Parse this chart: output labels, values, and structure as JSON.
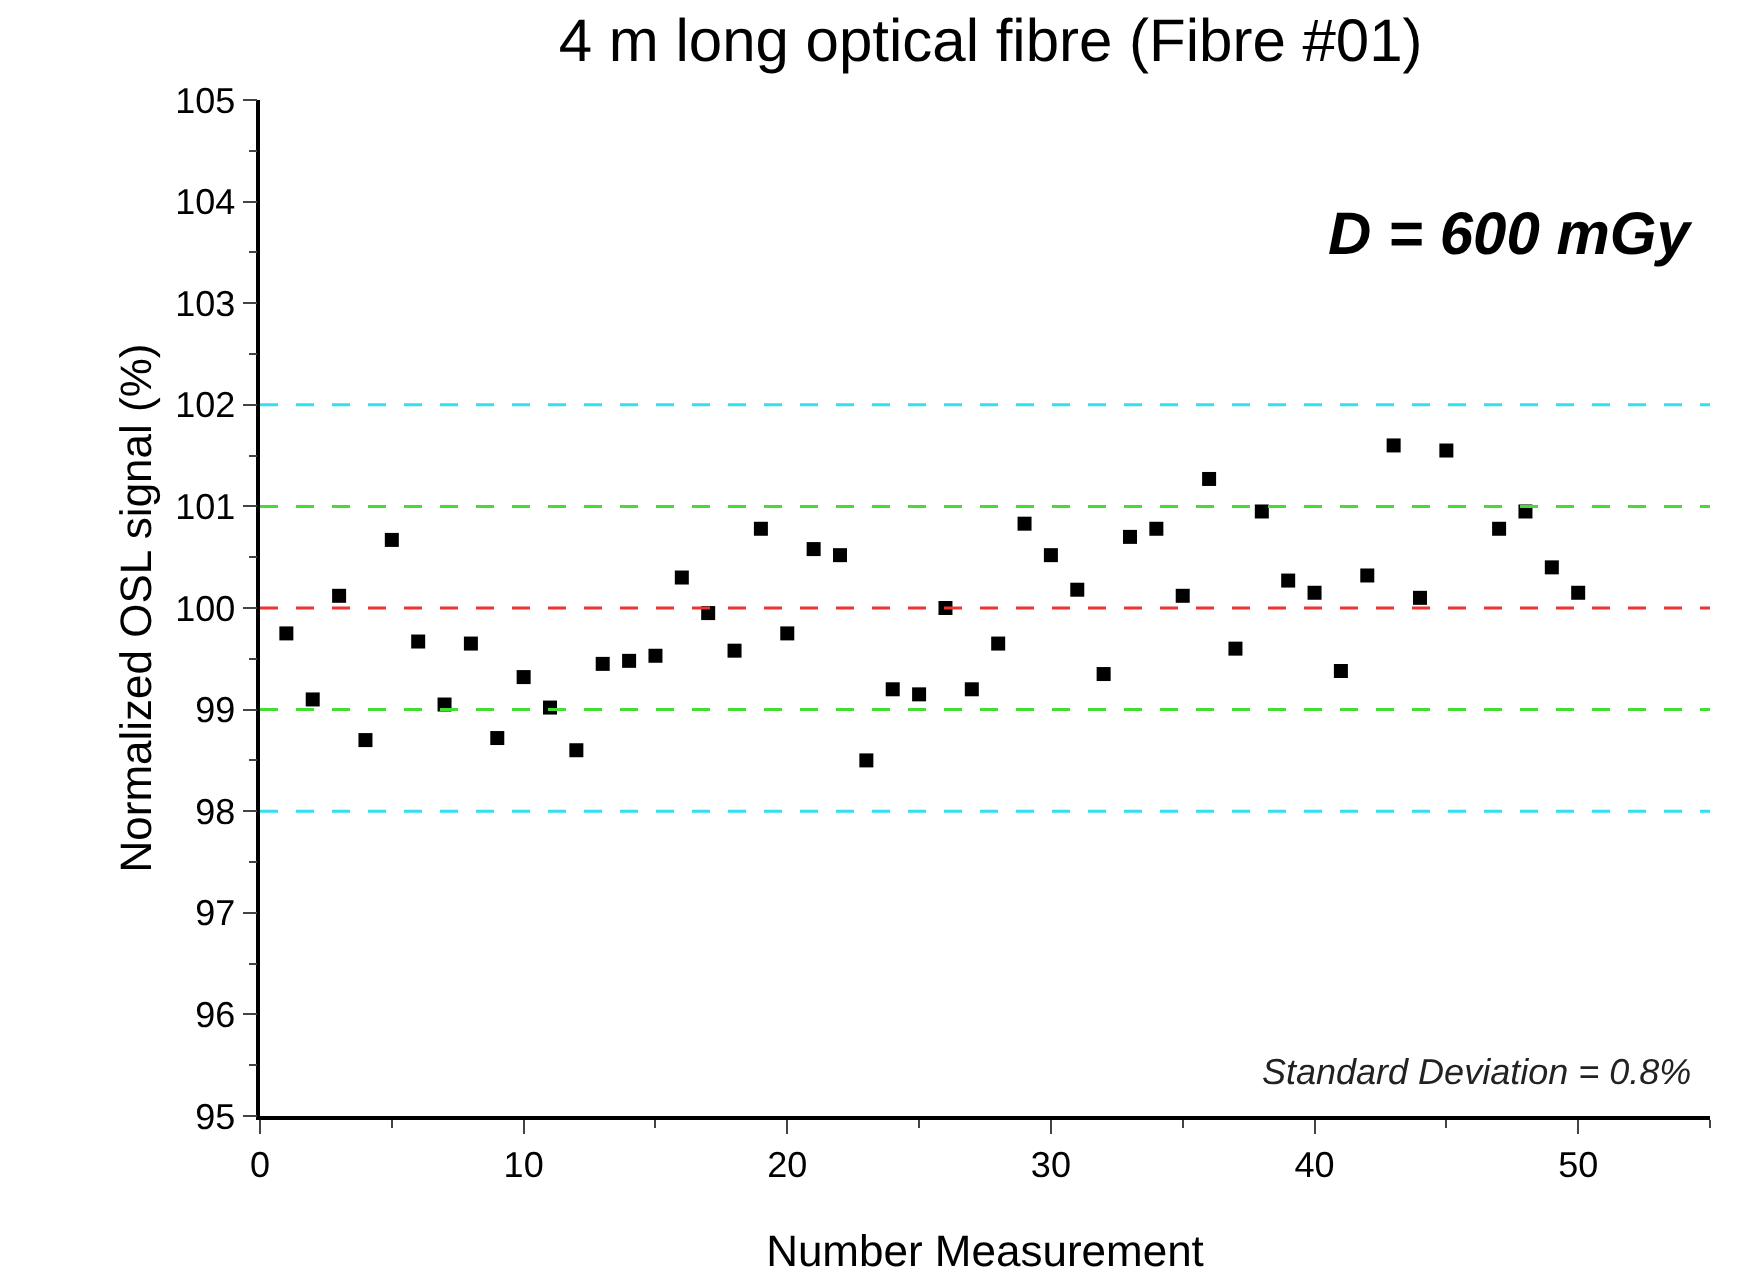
{
  "chart_data": {
    "type": "scatter",
    "title": "4 m long optical fibre (Fibre #01)",
    "xlabel": "Number Measurement",
    "ylabel": "Normalized OSL signal (%)",
    "x": [
      1,
      2,
      3,
      4,
      5,
      6,
      7,
      8,
      9,
      10,
      11,
      12,
      13,
      14,
      15,
      16,
      17,
      18,
      19,
      20,
      21,
      22,
      23,
      24,
      25,
      26,
      27,
      28,
      29,
      30,
      31,
      32,
      33,
      34,
      35,
      36,
      37,
      38,
      39,
      40,
      41,
      42,
      43,
      44,
      45,
      47,
      48,
      49,
      50
    ],
    "series": [
      {
        "color": "#000000",
        "values": [
          99.75,
          99.1,
          100.12,
          98.7,
          100.67,
          99.67,
          99.05,
          99.65,
          98.72,
          99.32,
          99.02,
          98.6,
          99.45,
          99.48,
          99.53,
          100.3,
          99.95,
          99.58,
          100.78,
          99.75,
          100.58,
          100.52,
          98.5,
          99.2,
          99.15,
          100.0,
          99.2,
          99.65,
          100.83,
          100.52,
          100.18,
          99.35,
          100.7,
          100.78,
          100.12,
          101.27,
          99.6,
          100.95,
          100.27,
          100.15,
          99.38,
          100.32,
          101.6,
          100.1,
          101.55,
          100.78,
          100.95,
          100.4,
          100.15
        ]
      }
    ],
    "marker": "square",
    "grid": false,
    "xlim": [
      0,
      55
    ],
    "xticks": [
      0,
      10,
      20,
      30,
      40,
      50
    ],
    "ylim": [
      95,
      105
    ],
    "yticks": [
      95,
      96,
      97,
      98,
      99,
      100,
      101,
      102,
      103,
      104,
      105
    ],
    "ref_lines": [
      {
        "axis": "y",
        "value": 102,
        "color": "#33e0f0",
        "line_style": "dashed"
      },
      {
        "axis": "y",
        "value": 101,
        "color": "#44dd33",
        "line_style": "dashed"
      },
      {
        "axis": "y",
        "value": 100,
        "color": "#ee3333",
        "line_style": "dashed"
      },
      {
        "axis": "y",
        "value": 99,
        "color": "#44dd33",
        "line_style": "dashed"
      },
      {
        "axis": "y",
        "value": 98,
        "color": "#33e0f0",
        "line_style": "dashed"
      }
    ],
    "annotations": [
      "D = 600 mGy",
      "Standard Deviation = 0.8%"
    ]
  }
}
